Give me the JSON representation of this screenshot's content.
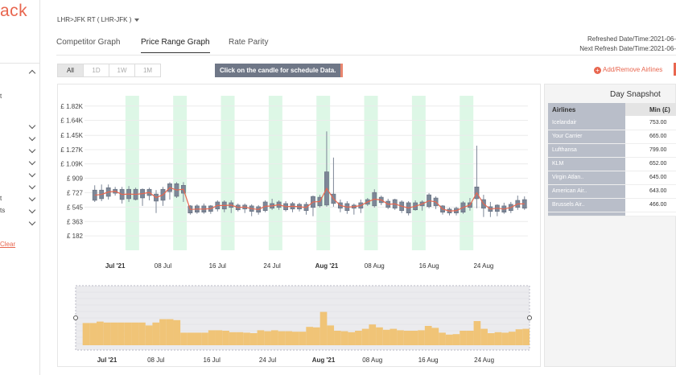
{
  "app": {
    "logo_text": "ack"
  },
  "sidebar": {
    "fragments": [
      "t",
      "t",
      "ts"
    ],
    "clear_label": "Clear"
  },
  "header": {
    "route": "LHR>JFK RT ( LHR-JFK )",
    "tabs": [
      {
        "label": "Competitor Graph",
        "active": false
      },
      {
        "label": "Price Range Graph",
        "active": true
      },
      {
        "label": "Rate Parity",
        "active": false
      }
    ],
    "refreshed": "Refreshed Date/Time:2021-06-",
    "next_refresh": "Next Refresh Date/Time:2021-06-"
  },
  "toolbar": {
    "ranges": [
      {
        "label": "All",
        "active": true
      },
      {
        "label": "1D",
        "active": false
      },
      {
        "label": "1W",
        "active": false
      },
      {
        "label": "1M",
        "active": false
      }
    ],
    "notice": "Click on the candle for schedule Data.",
    "add_remove_label": "Add/Remove Airlines"
  },
  "snapshot": {
    "title": "Day Snapshot",
    "col_airline": "Airlines",
    "col_min": "Min (£)",
    "rows": [
      {
        "airline": "Icelandair",
        "min": "753.00"
      },
      {
        "airline": "Your Carrier",
        "min": "665.00"
      },
      {
        "airline": "Lufthansa",
        "min": "799.00"
      },
      {
        "airline": "KLM",
        "min": "652.00"
      },
      {
        "airline": "Virgin Atlan..",
        "min": "645.00"
      },
      {
        "airline": "American Air..",
        "min": "643.00"
      },
      {
        "airline": "Brussels Air..",
        "min": "466.00"
      }
    ]
  },
  "chart_data": {
    "type": "candlestick",
    "y_ticks": [
      "£ 1.82K",
      "£ 1.64K",
      "£ 1.45K",
      "£ 1.27K",
      "£ 1.09K",
      "£ 909",
      "£ 727",
      "£ 545",
      "£ 363",
      "£ 182"
    ],
    "y_tick_values": [
      1820,
      1640,
      1450,
      1270,
      1090,
      909,
      727,
      545,
      363,
      182
    ],
    "ylim": [
      0,
      1950
    ],
    "x_range": [
      "2021-06-27",
      "2021-08-30"
    ],
    "x_ticks": [
      {
        "label": "Jul '21",
        "date": "2021-07-01",
        "bold": true
      },
      {
        "label": "08 Jul",
        "date": "2021-07-08",
        "bold": false
      },
      {
        "label": "16 Jul",
        "date": "2021-07-16",
        "bold": false
      },
      {
        "label": "24 Jul",
        "date": "2021-07-24",
        "bold": false
      },
      {
        "label": "Aug '21",
        "date": "2021-08-01",
        "bold": true
      },
      {
        "label": "08 Aug",
        "date": "2021-08-08",
        "bold": false
      },
      {
        "label": "16 Aug",
        "date": "2021-08-16",
        "bold": false
      },
      {
        "label": "24 Aug",
        "date": "2021-08-24",
        "bold": false
      }
    ],
    "weekend_bands": [
      [
        "2021-07-03",
        "2021-07-04"
      ],
      [
        "2021-07-10",
        "2021-07-11"
      ],
      [
        "2021-07-17",
        "2021-07-18"
      ],
      [
        "2021-07-24",
        "2021-07-25"
      ],
      [
        "2021-07-31",
        "2021-08-01"
      ],
      [
        "2021-08-07",
        "2021-08-08"
      ],
      [
        "2021-08-14",
        "2021-08-15"
      ],
      [
        "2021-08-21",
        "2021-08-22"
      ]
    ],
    "candles": [
      {
        "date": "2021-06-28",
        "open": 760,
        "close": 630,
        "low": 610,
        "high": 820
      },
      {
        "date": "2021-06-29",
        "open": 650,
        "close": 760,
        "low": 620,
        "high": 830
      },
      {
        "date": "2021-06-30",
        "open": 790,
        "close": 680,
        "low": 640,
        "high": 830
      },
      {
        "date": "2021-07-01",
        "open": 720,
        "close": 770,
        "low": 690,
        "high": 800
      },
      {
        "date": "2021-07-02",
        "open": 770,
        "close": 640,
        "low": 590,
        "high": 800
      },
      {
        "date": "2021-07-03",
        "open": 650,
        "close": 770,
        "low": 610,
        "high": 810
      },
      {
        "date": "2021-07-04",
        "open": 770,
        "close": 640,
        "low": 630,
        "high": 790
      },
      {
        "date": "2021-07-05",
        "open": 660,
        "close": 770,
        "low": 560,
        "high": 780
      },
      {
        "date": "2021-07-06",
        "open": 770,
        "close": 690,
        "low": 630,
        "high": 790
      },
      {
        "date": "2021-07-07",
        "open": 710,
        "close": 620,
        "low": 470,
        "high": 760
      },
      {
        "date": "2021-07-08",
        "open": 630,
        "close": 770,
        "low": 560,
        "high": 800
      },
      {
        "date": "2021-07-09",
        "open": 740,
        "close": 840,
        "low": 640,
        "high": 860
      },
      {
        "date": "2021-07-10",
        "open": 840,
        "close": 680,
        "low": 660,
        "high": 860
      },
      {
        "date": "2021-07-11",
        "open": 720,
        "close": 820,
        "low": 610,
        "high": 860
      },
      {
        "date": "2021-07-12",
        "open": 560,
        "close": 470,
        "low": 450,
        "high": 570
      },
      {
        "date": "2021-07-13",
        "open": 480,
        "close": 560,
        "low": 460,
        "high": 580
      },
      {
        "date": "2021-07-14",
        "open": 560,
        "close": 480,
        "low": 460,
        "high": 590
      },
      {
        "date": "2021-07-15",
        "open": 490,
        "close": 560,
        "low": 460,
        "high": 570
      },
      {
        "date": "2021-07-16",
        "open": 520,
        "close": 610,
        "low": 490,
        "high": 630
      },
      {
        "date": "2021-07-17",
        "open": 610,
        "close": 520,
        "low": 480,
        "high": 630
      },
      {
        "date": "2021-07-18",
        "open": 540,
        "close": 600,
        "low": 470,
        "high": 630
      },
      {
        "date": "2021-07-19",
        "open": 570,
        "close": 510,
        "low": 490,
        "high": 590
      },
      {
        "date": "2021-07-20",
        "open": 520,
        "close": 570,
        "low": 470,
        "high": 590
      },
      {
        "date": "2021-07-21",
        "open": 490,
        "close": 560,
        "low": 430,
        "high": 580
      },
      {
        "date": "2021-07-22",
        "open": 550,
        "close": 480,
        "low": 450,
        "high": 570
      },
      {
        "date": "2021-07-23",
        "open": 500,
        "close": 610,
        "low": 480,
        "high": 630
      },
      {
        "date": "2021-07-24",
        "open": 590,
        "close": 530,
        "low": 510,
        "high": 650
      },
      {
        "date": "2021-07-25",
        "open": 540,
        "close": 610,
        "low": 510,
        "high": 630
      },
      {
        "date": "2021-07-26",
        "open": 510,
        "close": 590,
        "low": 490,
        "high": 620
      },
      {
        "date": "2021-07-27",
        "open": 590,
        "close": 520,
        "low": 480,
        "high": 610
      },
      {
        "date": "2021-07-28",
        "open": 520,
        "close": 580,
        "low": 490,
        "high": 600
      },
      {
        "date": "2021-07-29",
        "open": 580,
        "close": 500,
        "low": 450,
        "high": 610
      },
      {
        "date": "2021-07-30",
        "open": 540,
        "close": 680,
        "low": 430,
        "high": 690
      },
      {
        "date": "2021-07-31",
        "open": 670,
        "close": 560,
        "low": 540,
        "high": 700
      },
      {
        "date": "2021-08-01",
        "open": 570,
        "close": 990,
        "low": 550,
        "high": 1500
      },
      {
        "date": "2021-08-02",
        "open": 710,
        "close": 590,
        "low": 550,
        "high": 1170
      },
      {
        "date": "2021-08-03",
        "open": 600,
        "close": 530,
        "low": 480,
        "high": 640
      },
      {
        "date": "2021-08-04",
        "open": 590,
        "close": 500,
        "low": 460,
        "high": 620
      },
      {
        "date": "2021-08-05",
        "open": 530,
        "close": 570,
        "low": 450,
        "high": 590
      },
      {
        "date": "2021-08-06",
        "open": 530,
        "close": 600,
        "low": 470,
        "high": 640
      },
      {
        "date": "2021-08-07",
        "open": 580,
        "close": 640,
        "low": 560,
        "high": 660
      },
      {
        "date": "2021-08-08",
        "open": 560,
        "close": 730,
        "low": 540,
        "high": 770
      },
      {
        "date": "2021-08-09",
        "open": 670,
        "close": 600,
        "low": 570,
        "high": 690
      },
      {
        "date": "2021-08-10",
        "open": 620,
        "close": 540,
        "low": 520,
        "high": 650
      },
      {
        "date": "2021-08-11",
        "open": 640,
        "close": 530,
        "low": 510,
        "high": 650
      },
      {
        "date": "2021-08-12",
        "open": 500,
        "close": 610,
        "low": 470,
        "high": 630
      },
      {
        "date": "2021-08-13",
        "open": 470,
        "close": 600,
        "low": 440,
        "high": 620
      },
      {
        "date": "2021-08-14",
        "open": 600,
        "close": 510,
        "low": 500,
        "high": 630
      },
      {
        "date": "2021-08-15",
        "open": 560,
        "close": 610,
        "low": 500,
        "high": 630
      },
      {
        "date": "2021-08-16",
        "open": 550,
        "close": 700,
        "low": 530,
        "high": 720
      },
      {
        "date": "2021-08-17",
        "open": 660,
        "close": 560,
        "low": 520,
        "high": 680
      },
      {
        "date": "2021-08-18",
        "open": 480,
        "close": 560,
        "low": 450,
        "high": 570
      },
      {
        "date": "2021-08-19",
        "open": 520,
        "close": 470,
        "low": 440,
        "high": 540
      },
      {
        "date": "2021-08-20",
        "open": 470,
        "close": 530,
        "low": 440,
        "high": 550
      },
      {
        "date": "2021-08-21",
        "open": 480,
        "close": 600,
        "low": 460,
        "high": 620
      },
      {
        "date": "2021-08-22",
        "open": 540,
        "close": 600,
        "low": 500,
        "high": 660
      },
      {
        "date": "2021-08-23",
        "open": 650,
        "close": 800,
        "low": 530,
        "high": 1320
      },
      {
        "date": "2021-08-24",
        "open": 530,
        "close": 640,
        "low": 420,
        "high": 700
      },
      {
        "date": "2021-08-25",
        "open": 550,
        "close": 490,
        "low": 420,
        "high": 610
      },
      {
        "date": "2021-08-26",
        "open": 490,
        "close": 570,
        "low": 430,
        "high": 580
      },
      {
        "date": "2021-08-27",
        "open": 480,
        "close": 560,
        "low": 460,
        "high": 600
      },
      {
        "date": "2021-08-28",
        "open": 500,
        "close": 580,
        "low": 470,
        "high": 610
      },
      {
        "date": "2021-08-29",
        "open": 540,
        "close": 630,
        "low": 510,
        "high": 690
      },
      {
        "date": "2021-08-30",
        "open": 530,
        "close": 640,
        "low": 510,
        "high": 680
      }
    ],
    "colors": {
      "candle": "#7d8797",
      "weekend": "#ddf7e6",
      "trend": "#e8664f",
      "navigator": "#f0c477"
    }
  }
}
